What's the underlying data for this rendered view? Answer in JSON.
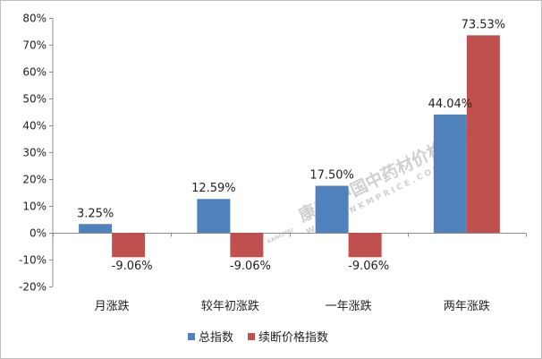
{
  "chart_data": {
    "type": "bar",
    "title": "",
    "xlabel": "",
    "ylabel": "",
    "ylim": [
      -20,
      80
    ],
    "ytick_step": 10,
    "ytick_labels": [
      "-20%",
      "-10%",
      "0%",
      "10%",
      "20%",
      "30%",
      "40%",
      "50%",
      "60%",
      "70%",
      "80%"
    ],
    "categories": [
      "月涨跌",
      "较年初涨跌",
      "一年涨跌",
      "两年涨跌"
    ],
    "series": [
      {
        "name": "总指数",
        "color": "#4f81bd",
        "values": [
          3.25,
          12.59,
          17.5,
          44.04
        ],
        "labels": [
          "3.25%",
          "12.59%",
          "17.50%",
          "44.04%"
        ]
      },
      {
        "name": "续断价格指数",
        "color": "#c0504d",
        "values": [
          -9.06,
          -9.06,
          -9.06,
          73.53
        ],
        "labels": [
          "-9.06%",
          "-9.06%",
          "-9.06%",
          "73.53%"
        ]
      }
    ],
    "legend_position": "bottom-center",
    "grid": false
  },
  "watermark": {
    "brand": "康美·中国中药材价格指数",
    "url": "WWW.CNKMPRICE.COM",
    "logo_text": "KANGMEI"
  }
}
